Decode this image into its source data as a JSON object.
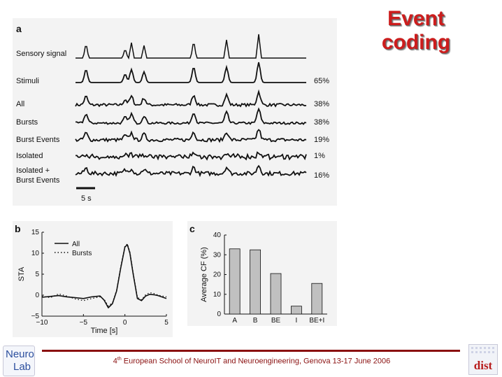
{
  "slide": {
    "title_line1": "Event",
    "title_line2": "coding",
    "footer_sup": "th",
    "footer_pre": "4",
    "footer_text": " European School of NeuroIT and Neuroengineering, Genova 13-17 June 2006",
    "logo_left_line1": "Neuro",
    "logo_left_line2": "Lab",
    "logo_right": "dist"
  },
  "panel_a": {
    "letter": "a",
    "scale_bar_label": "5 s",
    "traces": [
      {
        "label": "Sensory signal",
        "label2": "",
        "percent": ""
      },
      {
        "label": "Stimuli",
        "label2": "",
        "percent": "65%"
      },
      {
        "label": "All",
        "label2": "",
        "percent": "38%"
      },
      {
        "label": "Bursts",
        "label2": "",
        "percent": "38%"
      },
      {
        "label": "Burst Events",
        "label2": "",
        "percent": "19%"
      },
      {
        "label": "Isolated",
        "label2": "",
        "percent": "1%"
      },
      {
        "label": "Isolated +",
        "label2": "Burst Events",
        "percent": "16%"
      }
    ]
  },
  "chart_data": [
    {
      "panel": "b",
      "type": "line",
      "xlabel": "Time [s]",
      "ylabel": "STA",
      "xlim": [
        -10,
        5
      ],
      "ylim": [
        -5,
        15
      ],
      "xticks": [
        "−10",
        "−5",
        "0",
        "5"
      ],
      "yticks": [
        "−5",
        "0",
        "5",
        "10",
        "15"
      ],
      "legend": "top-left",
      "series": [
        {
          "name": "All",
          "style": "solid",
          "x": [
            -10,
            -9,
            -8,
            -7,
            -6,
            -5,
            -4,
            -3,
            -2.5,
            -2,
            -1.5,
            -1,
            -0.5,
            0,
            0.3,
            0.6,
            1,
            1.5,
            2,
            2.5,
            3,
            3.5,
            4,
            5
          ],
          "y": [
            -0.5,
            -0.3,
            -0.1,
            -0.4,
            -0.6,
            -0.8,
            -0.4,
            -0.2,
            -1.2,
            -3.0,
            -2.0,
            1.0,
            6.5,
            11.5,
            12.0,
            10.0,
            5.0,
            -0.8,
            -1.3,
            -0.2,
            0.2,
            0.1,
            -0.1,
            -0.8
          ]
        },
        {
          "name": "Bursts",
          "style": "dotted",
          "x": [
            -10,
            -9,
            -8,
            -7,
            -6,
            -5,
            -4,
            -3,
            -2.5,
            -2,
            -1.5,
            -1,
            -0.5,
            0,
            0.3,
            0.6,
            1,
            1.5,
            2,
            2.5,
            3,
            3.5,
            4,
            5
          ],
          "y": [
            -0.2,
            -0.6,
            0.3,
            -0.2,
            -0.9,
            -1.3,
            -0.8,
            -0.4,
            -1.0,
            -2.6,
            -1.8,
            1.2,
            6.8,
            11.7,
            12.2,
            10.3,
            5.3,
            -0.5,
            -1.1,
            0.1,
            0.6,
            0.4,
            0.0,
            -0.4
          ]
        }
      ]
    },
    {
      "panel": "c",
      "type": "bar",
      "ylabel": "Average CF (%)",
      "xlabel": "",
      "ylim": [
        0,
        40
      ],
      "yticks": [
        "0",
        "10",
        "20",
        "30",
        "40"
      ],
      "categories": [
        "A",
        "B",
        "BE",
        "I",
        "BE+I"
      ],
      "values": [
        33,
        32.5,
        20.5,
        4,
        15.5
      ],
      "bar_color": "#c0c0c0"
    }
  ]
}
